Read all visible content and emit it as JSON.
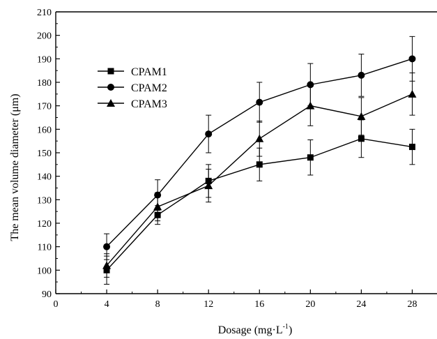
{
  "chart_data": {
    "type": "line",
    "title": "",
    "xlabel": "Dosage (mg·L",
    "xlabel_sup": "-1",
    "xlabel_close": ")",
    "ylabel": "The mean volume diameter (μm)",
    "xlim": [
      0,
      30
    ],
    "ylim": [
      90,
      210
    ],
    "xticks": [
      0,
      4,
      8,
      12,
      16,
      20,
      24,
      28
    ],
    "yticks": [
      90,
      100,
      110,
      120,
      130,
      140,
      150,
      160,
      170,
      180,
      190,
      200,
      210
    ],
    "grid": false,
    "legend_position": "upper-left",
    "x": [
      4,
      8,
      12,
      16,
      20,
      24,
      28
    ],
    "series": [
      {
        "name": "CPAM1",
        "marker": "square",
        "values": [
          100,
          123.5,
          138,
          145,
          148,
          156,
          152.5
        ],
        "errors": [
          6,
          4,
          7,
          7,
          7.5,
          8,
          7.5
        ]
      },
      {
        "name": "CPAM2",
        "marker": "circle",
        "values": [
          110,
          132,
          158,
          171.5,
          179,
          183,
          190
        ],
        "errors": [
          5.5,
          6.5,
          8,
          8.5,
          9,
          9,
          9.5
        ]
      },
      {
        "name": "CPAM3",
        "marker": "triangle",
        "values": [
          102,
          127,
          136,
          156,
          170,
          165.5,
          175
        ],
        "errors": [
          5,
          6,
          7,
          7.5,
          8.5,
          8,
          9
        ]
      }
    ]
  }
}
